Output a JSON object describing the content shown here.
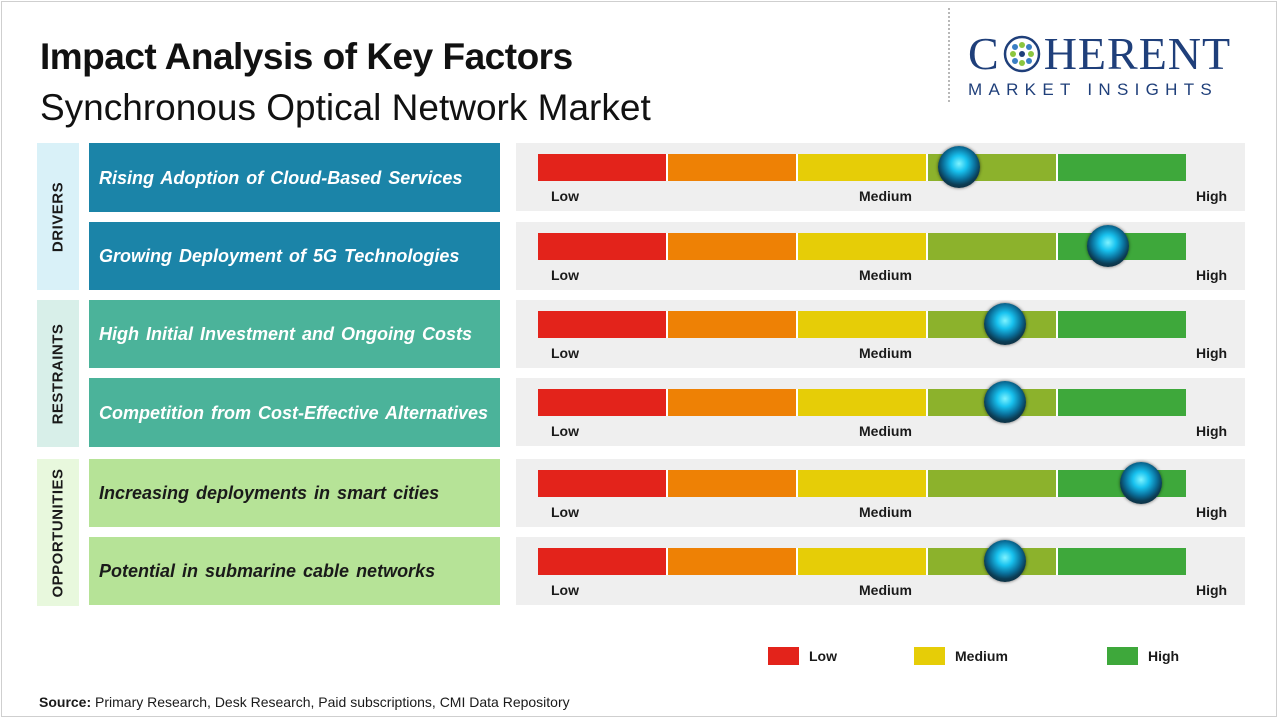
{
  "title": "Impact Analysis of Key Factors",
  "subtitle": "Synchronous Optical Network Market",
  "logo": {
    "top_c": "C",
    "top_rest": "HERENT",
    "bottom": "MARKET INSIGHTS",
    "color": "#1f3f7a"
  },
  "colors": {
    "low": "#e3231b",
    "low_medium": "#ee8105",
    "medium": "#e6cd07",
    "medium_high": "#8cb22c",
    "high": "#3ea83b",
    "drivers_box": "#1b84a8",
    "restraints_box": "#4bb39a",
    "opportunities_box": "#b6e397",
    "drivers_label_bg": "#d9f1f8",
    "restraints_label_bg": "#d8efe9",
    "opportunities_label_bg": "#e8f8dd"
  },
  "chart_data": {
    "type": "gauge",
    "scale_labels": {
      "low": "Low",
      "medium": "Medium",
      "high": "High"
    },
    "scale_range": [
      0,
      1
    ],
    "groups": [
      {
        "name": "DRIVERS",
        "factors": [
          {
            "label": "Rising Adoption of Cloud-Based Services",
            "impact": 0.65
          },
          {
            "label": "Growing Deployment of 5G Technologies",
            "impact": 0.88
          }
        ]
      },
      {
        "name": "RESTRAINTS",
        "factors": [
          {
            "label": "High Initial Investment and Ongoing Costs",
            "impact": 0.72
          },
          {
            "label": "Competition from Cost-Effective Alternatives",
            "impact": 0.72
          }
        ]
      },
      {
        "name": "OPPORTUNITIES",
        "factors": [
          {
            "label": "Increasing deployments in smart cities",
            "impact": 0.93
          },
          {
            "label": "Potential in submarine cable networks",
            "impact": 0.72
          }
        ]
      }
    ],
    "legend": [
      {
        "label": "Low",
        "color": "#e3231b"
      },
      {
        "label": "Medium",
        "color": "#e6cd07"
      },
      {
        "label": "High",
        "color": "#3ea83b"
      }
    ]
  },
  "source": {
    "label": "Source:",
    "text": " Primary Research, Desk Research, Paid subscriptions, CMI Data Repository"
  }
}
